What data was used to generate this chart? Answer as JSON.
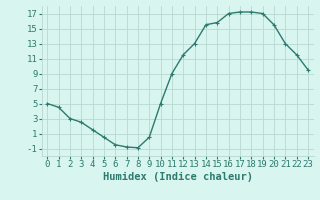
{
  "x": [
    0,
    1,
    2,
    3,
    4,
    5,
    6,
    7,
    8,
    9,
    10,
    11,
    12,
    13,
    14,
    15,
    16,
    17,
    18,
    19,
    20,
    21,
    22,
    23
  ],
  "y": [
    5,
    4.5,
    3,
    2.5,
    1.5,
    0.5,
    -0.5,
    -0.8,
    -0.9,
    0.5,
    5,
    9,
    11.5,
    13,
    15.5,
    15.8,
    17,
    17.2,
    17.2,
    17,
    15.5,
    13,
    11.5,
    9.5
  ],
  "line_color": "#2d7a6e",
  "marker": "+",
  "marker_size": 3,
  "bg_color": "#d8f5f0",
  "grid_color": "#b8d8d2",
  "xlabel": "Humidex (Indice chaleur)",
  "xlim": [
    -0.5,
    23.5
  ],
  "ylim": [
    -2,
    18
  ],
  "yticks": [
    -1,
    1,
    3,
    5,
    7,
    9,
    11,
    13,
    15,
    17
  ],
  "xticks": [
    0,
    1,
    2,
    3,
    4,
    5,
    6,
    7,
    8,
    9,
    10,
    11,
    12,
    13,
    14,
    15,
    16,
    17,
    18,
    19,
    20,
    21,
    22,
    23
  ],
  "xlabel_fontsize": 7.5,
  "tick_fontsize": 6.5,
  "line_width": 1.0
}
